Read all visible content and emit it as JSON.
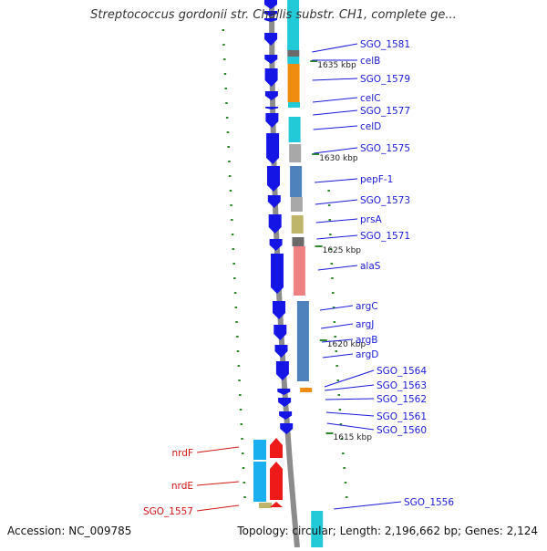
{
  "title": "Streptococcus gordonii str. Challis substr. CH1, complete ge...",
  "accession": "Accession: NC_009785",
  "summary": "Topology: circular; Length: 2,196,662 bp; Genes: 2,124",
  "colors": {
    "backbone": "#8c8c8c",
    "forward_arrow": "#1515e6",
    "label_blue": "#1a1ad6",
    "label_red": "#d11515",
    "tick_green": "#2a8a2a",
    "cyan": "#22c9d6",
    "orange": "#f08c10",
    "steelblue": "#4d82bd",
    "khaki": "#bfb56a",
    "salmon": "#ee8181",
    "grey": "#a8a8a8",
    "darkgrey": "#6a6a6a",
    "red": "#ee1a1a",
    "skyblue": "#1ab0f0"
  },
  "kbp_markers": [
    "1635 kbp",
    "1630 kbp",
    "1625 kbp",
    "1620 kbp",
    "1615 kbp"
  ],
  "gene_labels_right": [
    "SGO_1581",
    "celB",
    "SGO_1579",
    "celC",
    "SGO_1577",
    "celD",
    "SGO_1575",
    "pepF-1",
    "SGO_1573",
    "prsA",
    "SGO_1571",
    "alaS",
    "argC",
    "argJ",
    "argB",
    "argD",
    "SGO_1564",
    "SGO_1563",
    "SGO_1562",
    "SGO_1561",
    "SGO_1560",
    "SGO_1556"
  ],
  "gene_labels_left": [
    "nrdF",
    "nrdE",
    "SGO_1557"
  ]
}
